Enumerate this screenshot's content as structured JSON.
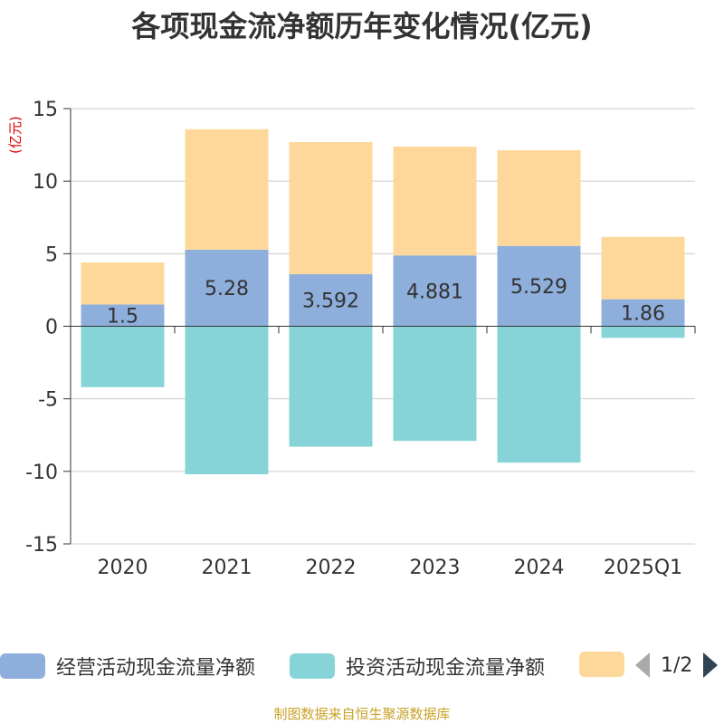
{
  "chart_data": {
    "type": "bar",
    "stacked": true,
    "title": "各项现金流净额历年变化情况(亿元)",
    "ylabel": "(亿元)",
    "categories": [
      "2020",
      "2021",
      "2022",
      "2023",
      "2024",
      "2025Q1"
    ],
    "ylim": [
      -15,
      15
    ],
    "yticks": [
      15,
      10,
      5,
      0,
      -5,
      -10,
      -15
    ],
    "series": [
      {
        "name": "经营活动现金流量净额",
        "color": "#8eaedb",
        "values": [
          1.5,
          5.28,
          3.592,
          4.881,
          5.529,
          1.86
        ],
        "labels": [
          "1.5",
          "5.28",
          "3.592",
          "4.881",
          "5.529",
          "1.86"
        ]
      },
      {
        "name": "投资活动现金流量净额",
        "color": "#86d4d8",
        "values": [
          -4.2,
          -10.2,
          -8.3,
          -7.9,
          -9.4,
          -0.8
        ]
      },
      {
        "name": "",
        "color": "#fdd89a",
        "values": [
          2.9,
          8.3,
          9.1,
          7.5,
          6.6,
          4.3
        ]
      }
    ]
  },
  "legend": {
    "items": [
      {
        "label": "经营活动现金流量净额",
        "color": "#8eaedb"
      },
      {
        "label": "投资活动现金流量净额",
        "color": "#86d4d8"
      },
      {
        "label": "",
        "color": "#fdd89a"
      }
    ],
    "page": "1/2"
  },
  "footer": "制图数据来自恒生聚源数据库"
}
